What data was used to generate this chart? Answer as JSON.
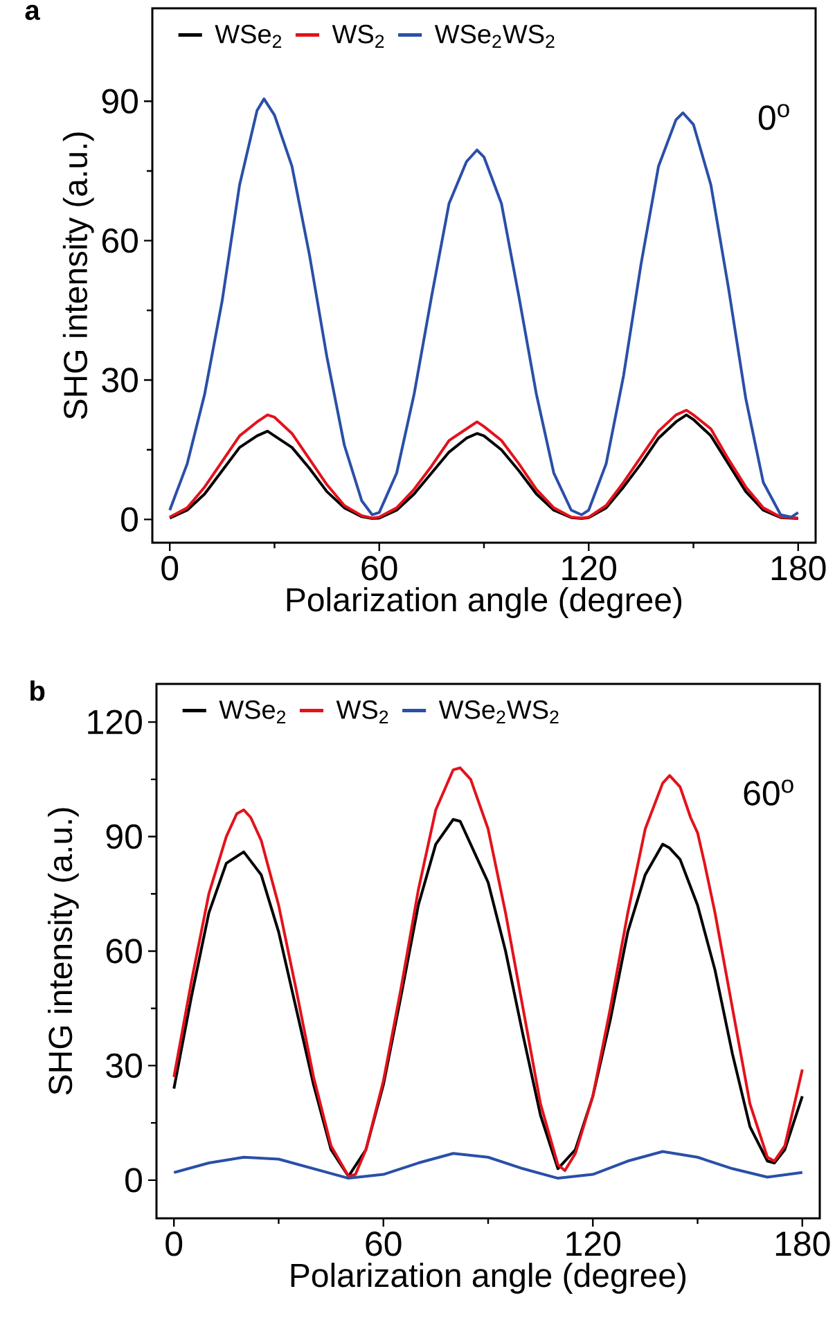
{
  "chart_data": [
    {
      "type": "line",
      "title": "a",
      "xlabel": "Polarization angle (degree)",
      "ylabel": "SHG intensity (a.u.)",
      "annotations": [
        "0$^{o}$"
      ],
      "xlim": [
        -5,
        185
      ],
      "ylim": [
        -5,
        110
      ],
      "xticks": [
        0,
        60,
        120,
        180
      ],
      "yticks": [
        0,
        30,
        60,
        90
      ],
      "legend": "top left",
      "series": [
        {
          "name": "WSe$_{2}$",
          "color": "#000000",
          "x": [
            0,
            5,
            10,
            15,
            20,
            25,
            28,
            30,
            35,
            40,
            45,
            50,
            55,
            58,
            60,
            65,
            70,
            75,
            80,
            85,
            88,
            90,
            95,
            100,
            105,
            110,
            115,
            118,
            120,
            125,
            130,
            135,
            140,
            145,
            148,
            150,
            155,
            160,
            165,
            170,
            175,
            180
          ],
          "values": [
            0.3,
            2,
            5.5,
            10.5,
            15.5,
            18,
            19,
            18,
            15.5,
            11,
            6,
            2.5,
            0.6,
            0.2,
            0.3,
            2,
            5.5,
            10,
            14.5,
            17.5,
            18.5,
            18,
            15,
            10.5,
            5.5,
            2,
            0.4,
            0.2,
            0.4,
            2.5,
            7,
            12,
            17.5,
            21,
            22.5,
            21.5,
            18,
            12,
            6,
            2,
            0.4,
            0.2
          ]
        },
        {
          "name": "WS$_{2}$",
          "color": "#e3121b",
          "x": [
            0,
            5,
            10,
            15,
            20,
            25,
            28,
            30,
            35,
            40,
            45,
            50,
            55,
            58,
            60,
            65,
            70,
            75,
            80,
            85,
            88,
            90,
            95,
            100,
            105,
            110,
            115,
            118,
            120,
            125,
            130,
            135,
            140,
            145,
            148,
            150,
            155,
            160,
            165,
            170,
            175,
            180
          ],
          "values": [
            0.5,
            2.5,
            7,
            12.5,
            18,
            21,
            22.5,
            22,
            18.5,
            13,
            7.5,
            3,
            0.8,
            0.3,
            0.5,
            2.5,
            6.5,
            11.5,
            17,
            19.5,
            21,
            20,
            17,
            12,
            6.5,
            2.5,
            0.5,
            0.3,
            0.5,
            3,
            8,
            13.5,
            19,
            22.5,
            23.5,
            22.5,
            19.5,
            13,
            7,
            2.5,
            0.5,
            0.3
          ]
        },
        {
          "name": "WSe$_{2}$WS$_{2}$",
          "color": "#2a4fa8",
          "x": [
            0,
            5,
            10,
            15,
            20,
            25,
            27,
            30,
            35,
            40,
            45,
            50,
            55,
            58,
            60,
            65,
            70,
            75,
            80,
            85,
            88,
            90,
            95,
            100,
            105,
            110,
            115,
            118,
            120,
            125,
            130,
            135,
            140,
            145,
            147,
            150,
            155,
            160,
            165,
            170,
            175,
            178,
            180
          ],
          "values": [
            2,
            12,
            27,
            47,
            72,
            88,
            90.5,
            87,
            76,
            57,
            35,
            16,
            4,
            1,
            1.5,
            10,
            27,
            48,
            68,
            77,
            79.5,
            78,
            68,
            48,
            27,
            10,
            2,
            1,
            2,
            12,
            31,
            55,
            76,
            86,
            87.5,
            85,
            72,
            50,
            26,
            8,
            1,
            0.5,
            1.5
          ]
        }
      ]
    },
    {
      "type": "line",
      "title": "b",
      "xlabel": "Polarization angle (degree)",
      "ylabel": "SHG intensity (a.u.)",
      "annotations": [
        "60$^{o}$"
      ],
      "xlim": [
        -5,
        185
      ],
      "ylim": [
        -10,
        130
      ],
      "xticks": [
        0,
        60,
        120,
        180
      ],
      "yticks": [
        0,
        30,
        60,
        90,
        120
      ],
      "legend": "top left",
      "series": [
        {
          "name": "WSe$_{2}$",
          "color": "#000000",
          "x": [
            0,
            5,
            10,
            15,
            20,
            25,
            30,
            35,
            40,
            45,
            50,
            55,
            60,
            65,
            70,
            75,
            80,
            82,
            85,
            90,
            95,
            100,
            105,
            110,
            112,
            115,
            120,
            125,
            130,
            135,
            140,
            142,
            145,
            150,
            155,
            160,
            165,
            170,
            172,
            175,
            180
          ],
          "values": [
            24,
            48,
            70,
            83,
            86,
            80,
            65,
            45,
            25,
            8,
            1,
            8,
            25,
            48,
            72,
            88,
            94.5,
            94,
            88,
            78,
            60,
            38,
            17,
            3,
            null,
            8,
            22,
            42,
            65,
            80,
            88,
            87,
            84,
            72,
            55,
            33,
            14,
            5,
            4.5,
            8,
            22
          ]
        },
        {
          "name": "WS$_{2}$",
          "color": "#e3121b",
          "x": [
            0,
            5,
            10,
            15,
            18,
            20,
            22,
            25,
            30,
            35,
            40,
            45,
            50,
            52,
            55,
            60,
            65,
            70,
            75,
            80,
            82,
            85,
            90,
            95,
            100,
            105,
            110,
            112,
            115,
            120,
            125,
            130,
            135,
            140,
            142,
            145,
            148,
            150,
            152,
            155,
            160,
            165,
            170,
            172,
            175,
            177,
            180
          ],
          "values": [
            27,
            52,
            75,
            90,
            96,
            97,
            95,
            89,
            72,
            50,
            27,
            9,
            1,
            1.5,
            8,
            26,
            50,
            76,
            97,
            107.5,
            108,
            105,
            92,
            70,
            45,
            20,
            4,
            2.5,
            7,
            22,
            45,
            70,
            92,
            104,
            106,
            103,
            95,
            91,
            83,
            70,
            45,
            20,
            6,
            5,
            9,
            17,
            29
          ]
        },
        {
          "name": "WSe$_{2}$WS$_{2}$",
          "color": "#2a4fa8",
          "x": [
            0,
            10,
            20,
            30,
            40,
            50,
            60,
            70,
            80,
            90,
            100,
            110,
            120,
            130,
            140,
            150,
            160,
            170,
            180
          ],
          "values": [
            2,
            4.5,
            6,
            5.5,
            3,
            0.5,
            1.5,
            4.5,
            7,
            6,
            3,
            0.5,
            1.5,
            5,
            7.5,
            6,
            3,
            0.8,
            2
          ]
        }
      ]
    }
  ]
}
